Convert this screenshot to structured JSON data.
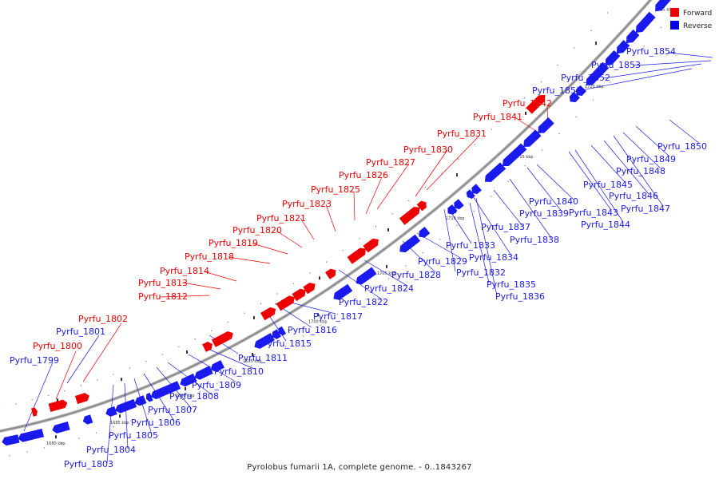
{
  "caption": "Pyrolobus fumarii 1A, complete genome. - 0..1843267",
  "legend": [
    {
      "label": "Forward",
      "color": "#ee0000"
    },
    {
      "label": "Reverse",
      "color": "#0000ee"
    }
  ],
  "colors": {
    "forward": "#ee0000",
    "reverse": "#1a1aee",
    "backbone": "#8c8c8c"
  },
  "ticks": [
    "1680 kbp",
    "1685 kbp",
    "1690 kbp",
    "1695 kbp",
    "1700 kbp",
    "1705 kbp",
    "1710 kbp",
    "1715 kbp",
    "1720 kbp",
    "1725 kbp"
  ],
  "genes": {
    "forward": [
      "Pyrfu_1800",
      "Pyrfu_1802",
      "Pyrfu_1812",
      "Pyrfu_1813",
      "Pyrfu_1814",
      "Pyrfu_1818",
      "Pyrfu_1819",
      "Pyrfu_1820",
      "Pyrfu_1821",
      "Pyrfu_1823",
      "Pyrfu_1825",
      "Pyrfu_1826",
      "Pyrfu_1827",
      "Pyrfu_1830",
      "Pyrfu_1831",
      "Pyrfu_1841",
      "Pyrfu_1842"
    ],
    "reverse": [
      "Pyrfu_1799",
      "Pyrfu_1801",
      "Pyrfu_1803",
      "Pyrfu_1804",
      "Pyrfu_1805",
      "Pyrfu_1806",
      "Pyrfu_1807",
      "Pyrfu_1808",
      "Pyrfu_1809",
      "Pyrfu_1810",
      "Pyrfu_1811",
      "Pyrfu_1815",
      "Pyrfu_1816",
      "Pyrfu_1817",
      "Pyrfu_1822",
      "Pyrfu_1824",
      "Pyrfu_1828",
      "Pyrfu_1829",
      "Pyrfu_1832",
      "Pyrfu_1833",
      "Pyrfu_1834",
      "Pyrfu_1835",
      "Pyrfu_1836",
      "Pyrfu_1837",
      "Pyrfu_1838",
      "Pyrfu_1839",
      "Pyrfu_1840",
      "Pyrfu_1843",
      "Pyrfu_1844",
      "Pyrfu_1845",
      "Pyrfu_1846",
      "Pyrfu_1847",
      "Pyrfu_1848",
      "Pyrfu_1849",
      "Pyrfu_1850",
      "Pyrfu_1851",
      "Pyrfu_1852",
      "Pyrfu_1853",
      "Pyrfu_1854"
    ]
  }
}
